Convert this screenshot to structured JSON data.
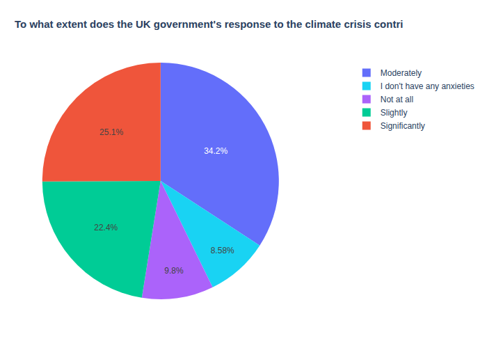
{
  "chart_data": {
    "type": "pie",
    "title": "To what extent does the UK government's response to the climate crisis contri",
    "categories": [
      "Moderately",
      "I don't have any anxieties",
      "Not at all",
      "Slightly",
      "Significantly"
    ],
    "values": [
      34.2,
      8.58,
      9.8,
      22.4,
      25.1
    ],
    "value_labels": [
      "34.2%",
      "8.58%",
      "9.8%",
      "22.4%",
      "25.1%"
    ],
    "colors": [
      "#636efa",
      "#19d3f3",
      "#ab63fa",
      "#00cc96",
      "#EF553B"
    ],
    "data_labels": true,
    "legend": "top-right"
  }
}
